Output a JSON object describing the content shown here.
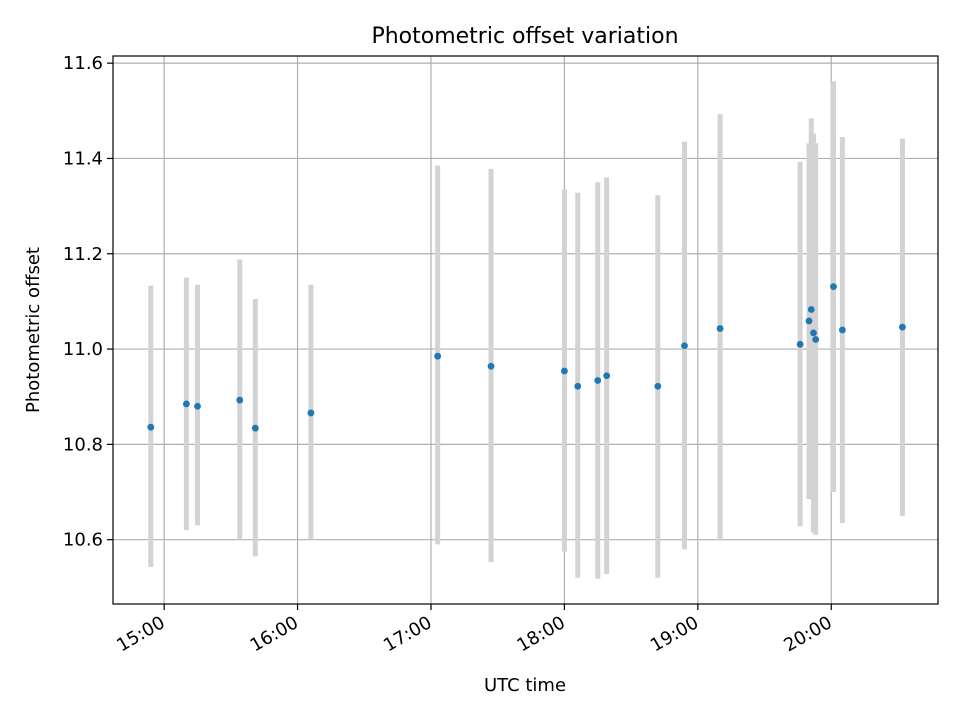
{
  "chart_data": {
    "type": "scatter",
    "title": "Photometric offset variation",
    "xlabel": "UTC time",
    "ylabel": "Photometric offset",
    "x_ticks": [
      "15:00",
      "16:00",
      "17:00",
      "18:00",
      "19:00",
      "20:00"
    ],
    "y_ticks": [
      "10.6",
      "10.8",
      "11.0",
      "11.2",
      "11.4",
      "11.6"
    ],
    "xlim": [
      "14:37",
      "20:48"
    ],
    "ylim": [
      10.465,
      11.615
    ],
    "grid": true,
    "colors": {
      "point": "#1f77b4",
      "errorbar": "#d3d3d3",
      "grid": "#b0b0b0"
    },
    "points": [
      {
        "x": "14:54",
        "y": 10.836,
        "err_low": 10.543,
        "err_high": 11.133
      },
      {
        "x": "15:10",
        "y": 10.885,
        "err_low": 10.62,
        "err_high": 11.15
      },
      {
        "x": "15:15",
        "y": 10.88,
        "err_low": 10.63,
        "err_high": 11.135
      },
      {
        "x": "15:34",
        "y": 10.893,
        "err_low": 10.6,
        "err_high": 11.188
      },
      {
        "x": "15:41",
        "y": 10.834,
        "err_low": 10.565,
        "err_high": 11.105
      },
      {
        "x": "16:06",
        "y": 10.866,
        "err_low": 10.6,
        "err_high": 11.135
      },
      {
        "x": "17:03",
        "y": 10.985,
        "err_low": 10.59,
        "err_high": 11.385
      },
      {
        "x": "17:27",
        "y": 10.964,
        "err_low": 10.553,
        "err_high": 11.378
      },
      {
        "x": "18:00",
        "y": 10.954,
        "err_low": 10.575,
        "err_high": 11.335
      },
      {
        "x": "18:06",
        "y": 10.922,
        "err_low": 10.52,
        "err_high": 11.328
      },
      {
        "x": "18:15",
        "y": 10.934,
        "err_low": 10.518,
        "err_high": 11.35
      },
      {
        "x": "18:19",
        "y": 10.944,
        "err_low": 10.528,
        "err_high": 11.36
      },
      {
        "x": "18:42",
        "y": 10.922,
        "err_low": 10.52,
        "err_high": 11.323
      },
      {
        "x": "18:54",
        "y": 11.007,
        "err_low": 10.58,
        "err_high": 11.435
      },
      {
        "x": "19:10",
        "y": 11.043,
        "err_low": 10.598,
        "err_high": 11.493
      },
      {
        "x": "19:46",
        "y": 11.01,
        "err_low": 10.628,
        "err_high": 11.393
      },
      {
        "x": "19:50",
        "y": 11.059,
        "err_low": 10.685,
        "err_high": 11.432
      },
      {
        "x": "19:51",
        "y": 11.083,
        "err_low": 10.685,
        "err_high": 11.484
      },
      {
        "x": "19:52",
        "y": 11.034,
        "err_low": 10.615,
        "err_high": 11.452
      },
      {
        "x": "19:53",
        "y": 11.02,
        "err_low": 10.61,
        "err_high": 11.432
      },
      {
        "x": "20:01",
        "y": 11.131,
        "err_low": 10.7,
        "err_high": 11.562
      },
      {
        "x": "20:05",
        "y": 11.04,
        "err_low": 10.635,
        "err_high": 11.445
      },
      {
        "x": "20:32",
        "y": 11.046,
        "err_low": 10.65,
        "err_high": 11.442
      }
    ]
  }
}
